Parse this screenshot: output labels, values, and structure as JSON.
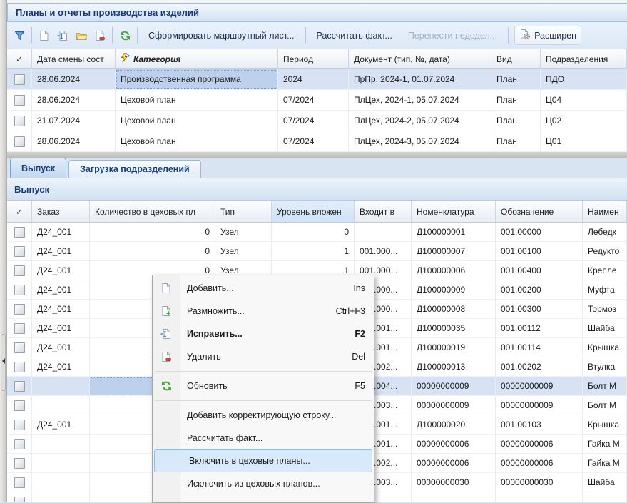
{
  "title": "Планы и отчеты производства изделий",
  "glyphs": {
    "check": "✓"
  },
  "toolbar": {
    "buttons": [
      {
        "label": "Сформировать маршрутный лист...",
        "enabled": true
      },
      {
        "label": "Рассчитать факт...",
        "enabled": true
      },
      {
        "label": "Перенести недодел...",
        "enabled": false
      },
      {
        "label": "Расширен",
        "enabled": true
      }
    ]
  },
  "plans_table": {
    "columns": [
      "",
      "Дата смены сост",
      "Категория",
      "Период",
      "Документ (тип, №, дата)",
      "Вид",
      "Подразделения"
    ],
    "rows": [
      {
        "date": "28.06.2024",
        "category": "Производственная программа",
        "period": "2024",
        "document": "ПрПр, 2024-1, 01.07.2024",
        "kind": "План",
        "division": "ПДО",
        "selected": true
      },
      {
        "date": "28.06.2024",
        "category": "Цеховой план",
        "period": "07/2024",
        "document": "ПлЦех, 2024-1, 05.07.2024",
        "kind": "План",
        "division": "Ц04"
      },
      {
        "date": "31.07.2024",
        "category": "Цеховой план",
        "period": "07/2024",
        "document": "ПлЦех, 2024-2, 05.07.2024",
        "kind": "План",
        "division": "Ц02"
      },
      {
        "date": "28.06.2024",
        "category": "Цеховой план",
        "period": "07/2024",
        "document": "ПлЦех, 2024-3, 05.07.2024",
        "kind": "План",
        "division": "Ц01"
      }
    ]
  },
  "tabs": [
    {
      "label": "Выпуск",
      "active": true
    },
    {
      "label": "Загрузка подразделений",
      "active": false
    }
  ],
  "panel_title": "Выпуск",
  "output_table": {
    "columns": [
      "",
      "Заказ",
      "Количество в цеховых пл",
      "Тип",
      "Уровень вложен",
      "Входит в",
      "Номенклатура",
      "Обозначение",
      "Наимен"
    ],
    "rows": [
      {
        "order": "Д24_001",
        "qty": "0",
        "type": "Узел",
        "level": "0",
        "parent": "",
        "nom": "Д100000001",
        "des": "001.00000",
        "name": "Лебедк"
      },
      {
        "order": "Д24_001",
        "qty": "0",
        "type": "Узел",
        "level": "1",
        "parent": "001.000...",
        "nom": "Д100000007",
        "des": "001.00100",
        "name": "Редукто"
      },
      {
        "order": "Д24_001",
        "qty": "0",
        "type": "Узел",
        "level": "1",
        "parent": "001.000...",
        "nom": "Д100000006",
        "des": "001.00400",
        "name": "Крепле"
      },
      {
        "order": "Д24_001",
        "qty": "",
        "type": "",
        "level": "",
        "parent": "001.000...",
        "nom": "Д100000009",
        "des": "001.00200",
        "name": "Муфта"
      },
      {
        "order": "Д24_001",
        "qty": "",
        "type": "",
        "level": "",
        "parent": "001.000...",
        "nom": "Д100000008",
        "des": "001.00300",
        "name": "Тормоз"
      },
      {
        "order": "Д24_001",
        "qty": "",
        "type": "",
        "level": "",
        "parent": "001.001...",
        "nom": "Д100000035",
        "des": "001.00112",
        "name": "Шайба"
      },
      {
        "order": "Д24_001",
        "qty": "",
        "type": "",
        "level": "",
        "parent": "001.001...",
        "nom": "Д100000019",
        "des": "001.00114",
        "name": "Крышка"
      },
      {
        "order": "Д24_001",
        "qty": "",
        "type": "",
        "level": "",
        "parent": "001.002...",
        "nom": "Д100000013",
        "des": "001.00202",
        "name": "Втулка"
      },
      {
        "order": "",
        "qty": "",
        "type": "",
        "level": "",
        "parent": "001.004...",
        "nom": "00000000009",
        "des": "00000000009",
        "name": "Болт М",
        "selected": true
      },
      {
        "order": "",
        "qty": "",
        "type": "",
        "level": "",
        "parent": "001.003...",
        "nom": "00000000009",
        "des": "00000000009",
        "name": "Болт М"
      },
      {
        "order": "Д24_001",
        "qty": "",
        "type": "",
        "level": "",
        "parent": "001.001...",
        "nom": "Д100000020",
        "des": "001.00103",
        "name": "Крышка"
      },
      {
        "order": "",
        "qty": "",
        "type": "",
        "level": "",
        "parent": "001.001...",
        "nom": "00000000006",
        "des": "00000000006",
        "name": "Гайка М"
      },
      {
        "order": "",
        "qty": "",
        "type": "",
        "level": "",
        "parent": "001.002...",
        "nom": "00000000006",
        "des": "00000000006",
        "name": "Гайка М"
      },
      {
        "order": "",
        "qty": "",
        "type": "",
        "level": "",
        "parent": "001.003...",
        "nom": "00000000030",
        "des": "00000000030",
        "name": "Шайба"
      },
      {
        "order": "",
        "qty": "",
        "type": "",
        "level": "",
        "parent": "",
        "nom": "",
        "des": "",
        "name": ""
      }
    ]
  },
  "context_menu": {
    "items": [
      {
        "type": "item",
        "label": "Добавить...",
        "shortcut": "Ins",
        "icon": "add-document-icon"
      },
      {
        "type": "item",
        "label": "Размножить...",
        "shortcut": "Ctrl+F3",
        "icon": "duplicate-document-icon"
      },
      {
        "type": "item",
        "label": "Исправить...",
        "shortcut": "F2",
        "icon": "edit-document-icon",
        "bold": true
      },
      {
        "type": "item",
        "label": "Удалить",
        "shortcut": "Del",
        "icon": "delete-document-icon"
      },
      {
        "type": "separator"
      },
      {
        "type": "item",
        "label": "Обновить",
        "shortcut": "F5",
        "icon": "refresh-icon"
      },
      {
        "type": "separator"
      },
      {
        "type": "item",
        "label": "Добавить корректирующую строку...",
        "shortcut": ""
      },
      {
        "type": "item",
        "label": "Рассчитать факт...",
        "shortcut": ""
      },
      {
        "type": "item",
        "label": "Включить в цеховые планы...",
        "shortcut": "",
        "highlighted": true
      },
      {
        "type": "item",
        "label": "Исключить из цеховых планов...",
        "shortcut": ""
      }
    ]
  }
}
